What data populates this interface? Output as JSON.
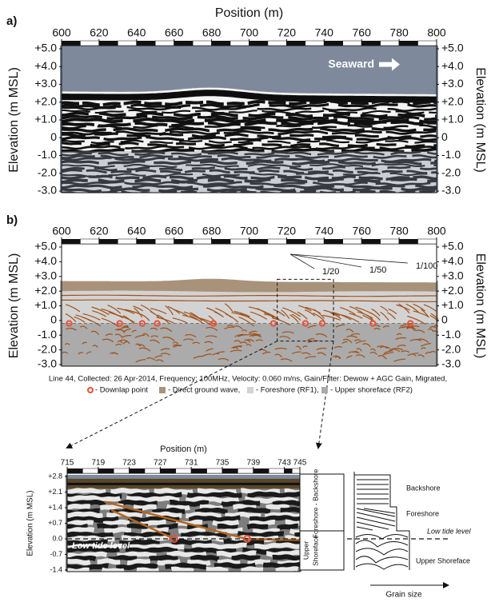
{
  "chart_data": [
    {
      "type": "radargram",
      "panel_label": "a)",
      "xlabel": "Position (m)",
      "ylabel": "Elevation (m MSL)",
      "mirror_y": true,
      "xlim": [
        600,
        800
      ],
      "xticks": [
        600,
        620,
        640,
        660,
        680,
        700,
        720,
        740,
        760,
        780,
        800
      ],
      "ylim": [
        -3,
        5
      ],
      "yticks": [
        {
          "value": 5,
          "label": "+5.0"
        },
        {
          "value": 4,
          "label": "+4.0"
        },
        {
          "value": 3,
          "label": "+3.0"
        },
        {
          "value": 2,
          "label": "+2.0"
        },
        {
          "value": 1,
          "label": "+1.0"
        },
        0,
        {
          "value": -1,
          "label": "-1.0"
        },
        {
          "value": -2,
          "label": "-2.0"
        },
        {
          "value": -3,
          "label": "-3.0"
        }
      ],
      "annotation": "Seaward"
    },
    {
      "type": "radargram",
      "panel_label": "b)",
      "ylabel": "Elevation (m MSL)",
      "mirror_y": true,
      "xlim": [
        600,
        800
      ],
      "xticks": [
        600,
        620,
        640,
        660,
        680,
        700,
        720,
        740,
        760,
        780,
        800
      ],
      "ylim": [
        -3,
        5
      ],
      "yticks": [
        {
          "value": 5,
          "label": "+5.0"
        },
        {
          "value": 4,
          "label": "+4.0"
        },
        {
          "value": 3,
          "label": "+3.0"
        },
        {
          "value": 2,
          "label": "+2.0"
        },
        {
          "value": 1,
          "label": "+1.0"
        },
        0,
        {
          "value": -1,
          "label": "-1.0"
        },
        {
          "value": -2,
          "label": "-2.0"
        },
        {
          "value": -3,
          "label": "-3.0"
        }
      ],
      "slope_labels": [
        "1/20",
        "1/50",
        "1/100"
      ],
      "caption": "Line 44, Collected: 26 Apr-2014, Frequency: 100MHz, Velocity: 0.060 m/ns, Gain/Filter: Dewow + AGC Gain, Migrated,",
      "series": [
        {
          "name": "- Downlap point",
          "color": "#e8513a",
          "x": [
            604,
            631,
            643,
            651,
            681,
            713,
            730,
            739,
            766,
            786
          ],
          "values": [
            -0.2,
            -0.2,
            -0.2,
            -0.2,
            -0.2,
            -0.2,
            -0.2,
            -0.2,
            -0.2,
            -0.2
          ]
        }
      ],
      "legend": [
        {
          "label": "- Direct ground wave,",
          "color": "#a8937a"
        },
        {
          "label": "- Foreshore (RF1),",
          "color": "#d3d3d3"
        },
        {
          "label": "- Upper shoreface (RF2)",
          "color": "#ababab"
        }
      ]
    },
    {
      "type": "radargram",
      "xlabel": "Position (m)",
      "ylabel": "Elevation (m MSL)",
      "mirror_y": false,
      "xlim": [
        715,
        745
      ],
      "xticks": [
        715,
        719,
        723,
        727,
        731,
        735,
        739,
        743,
        745
      ],
      "ylim": [
        -1.4,
        2.8
      ],
      "yticks": [
        {
          "value": 2.8,
          "label": "+2.8"
        },
        {
          "value": 2.1,
          "label": "+2.1"
        },
        {
          "value": 1.4,
          "label": "+1.4"
        },
        {
          "value": 0.7,
          "label": "+0.7"
        },
        {
          "value": 0,
          "label": "0.0"
        },
        -0.7,
        -1.4
      ],
      "annotation": "Low tide level",
      "series": [
        {
          "color": "#e8513a",
          "x": [
            728.8,
            738.2
          ],
          "values": [
            0,
            0
          ]
        }
      ],
      "facies": {
        "upper": "Foreshore - Backshore",
        "lower": [
          "Upper",
          "Shoreface"
        ]
      }
    }
  ],
  "sketch": {
    "backshore": "Backshore",
    "foreshore": "Foreshore",
    "low_tide": "Low tide level",
    "upper_shoreface": "Upper Shoreface",
    "axis": "Grain size"
  }
}
